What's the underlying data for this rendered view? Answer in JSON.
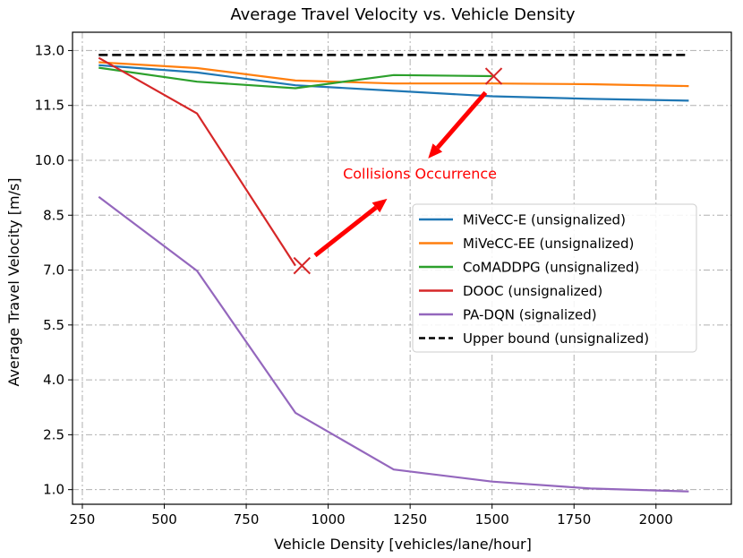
{
  "chart_data": {
    "type": "line",
    "title": "Average Travel Velocity vs. Vehicle Density",
    "xlabel": "Vehicle Density [vehicles/lane/hour]",
    "ylabel": "Average Travel Velocity [m/s]",
    "xlim": [
      220,
      2230
    ],
    "ylim": [
      0.6,
      13.5
    ],
    "xticks": [
      250,
      500,
      750,
      1000,
      1250,
      1500,
      1750,
      2000
    ],
    "xtick_labels": [
      "250",
      "500",
      "750",
      "1000",
      "1250",
      "1500",
      "1750",
      "2000"
    ],
    "yticks": [
      1.0,
      2.5,
      4.0,
      5.5,
      7.0,
      8.5,
      10.0,
      11.5,
      13.0
    ],
    "ytick_labels": [
      "1.0",
      "2.5",
      "4.0",
      "5.5",
      "7.0",
      "8.5",
      "10.0",
      "11.5",
      "13.0"
    ],
    "grid": true,
    "legend_position": "center-right",
    "series": [
      {
        "name": "MiVeCC-E (unsignalized)",
        "color": "#1f77b4",
        "dash": "solid",
        "x": [
          300,
          600,
          900,
          1200,
          1500,
          1800,
          2100
        ],
        "y": [
          12.6,
          12.4,
          12.05,
          11.9,
          11.75,
          11.68,
          11.63
        ]
      },
      {
        "name": "MiVeCC-EE (unsignalized)",
        "color": "#ff7f0e",
        "dash": "solid",
        "x": [
          300,
          600,
          900,
          1200,
          1500,
          1800,
          2100
        ],
        "y": [
          12.68,
          12.52,
          12.18,
          12.1,
          12.1,
          12.08,
          12.03
        ]
      },
      {
        "name": "CoMADDPG (unsignalized)",
        "color": "#2ca02c",
        "dash": "solid",
        "x": [
          300,
          600,
          900,
          1200,
          1500
        ],
        "y": [
          12.53,
          12.15,
          11.97,
          12.33,
          12.3
        ]
      },
      {
        "name": "DOOC (unsignalized)",
        "color": "#d62728",
        "dash": "solid",
        "x": [
          300,
          600,
          900
        ],
        "y": [
          12.8,
          11.28,
          7.12
        ]
      },
      {
        "name": "PA-DQN (signalized)",
        "color": "#9467bd",
        "dash": "solid",
        "x": [
          300,
          600,
          900,
          1200,
          1500,
          1800,
          2100
        ],
        "y": [
          9.0,
          6.98,
          3.1,
          1.55,
          1.22,
          1.03,
          0.95
        ]
      },
      {
        "name": "Upper bound (unsignalized)",
        "color": "#000000",
        "dash": "dashed",
        "x": [
          300,
          2100
        ],
        "y": [
          12.88,
          12.88
        ]
      }
    ],
    "markers": [
      {
        "name": "dooc-collision",
        "symbol": "x",
        "color": "#d62728",
        "x": 920,
        "y": 7.12
      },
      {
        "name": "comaddpg-collision",
        "symbol": "x",
        "color": "#d62728",
        "x": 1505,
        "y": 12.3
      }
    ],
    "annotation": {
      "text": "Collisions Occurrence",
      "color": "#ff0000",
      "x": 1045,
      "y": 9.5,
      "arrows": [
        {
          "from_x": 960,
          "from_y": 7.4,
          "to_x": 1180,
          "to_y": 8.95
        },
        {
          "from_x": 1480,
          "from_y": 11.85,
          "to_x": 1305,
          "to_y": 10.05
        }
      ]
    }
  }
}
